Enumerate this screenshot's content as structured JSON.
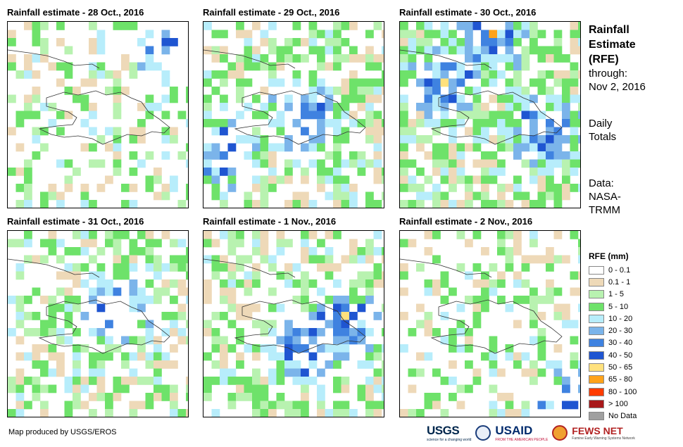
{
  "maps": [
    {
      "title": "Rainfall estimate - 28 Oct., 2016",
      "date": "28 Oct., 2016"
    },
    {
      "title": "Rainfall estimate - 29 Oct., 2016",
      "date": "29 Oct., 2016"
    },
    {
      "title": "Rainfall estimate - 30 Oct., 2016",
      "date": "30 Oct., 2016"
    },
    {
      "title": "Rainfall estimate - 31 Oct., 2016",
      "date": "31 Oct., 2016"
    },
    {
      "title": "Rainfall estimate - 1 Nov., 2016",
      "date": "1 Nov., 2016"
    },
    {
      "title": "Rainfall estimate - 2 Nov., 2016",
      "date": "2 Nov., 2016"
    }
  ],
  "sidebar": {
    "title_line1": "Rainfall",
    "title_line2": "Estimate",
    "title_line3": "(RFE)",
    "through_label": "through:",
    "through_date": "Nov 2, 2016",
    "totals_line1": "Daily",
    "totals_line2": "Totals",
    "data_label": "Data:",
    "data_source_line1": "NASA-",
    "data_source_line2": "TRMM"
  },
  "legend": {
    "title": "RFE (mm)",
    "items": [
      {
        "label": "0 - 0.1",
        "color": "#ffffff"
      },
      {
        "label": "0.1 - 1",
        "color": "#eed9b8"
      },
      {
        "label": "1 - 5",
        "color": "#b8f2b0"
      },
      {
        "label": "5 - 10",
        "color": "#6ee26a"
      },
      {
        "label": "10 - 20",
        "color": "#b7edfb"
      },
      {
        "label": "20 - 30",
        "color": "#7bb4ea"
      },
      {
        "label": "30 - 40",
        "color": "#3f82e0"
      },
      {
        "label": "40 - 50",
        "color": "#1f55d1"
      },
      {
        "label": "50 - 65",
        "color": "#ffe17d"
      },
      {
        "label": "65 - 80",
        "color": "#ffa31a"
      },
      {
        "label": "80 - 100",
        "color": "#ff3c00"
      },
      {
        "label": "> 100",
        "color": "#a8181a"
      },
      {
        "label": "No Data",
        "color": "#a0a0a0"
      }
    ]
  },
  "footer": {
    "credit": "Map produced by USGS/EROS",
    "logos": {
      "usgs": "USGS",
      "usgs_tagline": "science for a changing world",
      "usaid": "USAID",
      "usaid_tagline": "FROM THE AMERICAN PEOPLE",
      "fews": "FEWS NET",
      "fews_tagline": "Famine Early Warning Systems Network"
    }
  }
}
